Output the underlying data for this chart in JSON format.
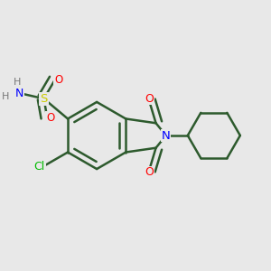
{
  "bg_color": "#e8e8e8",
  "bond_color": "#2d5a2d",
  "N_color": "#0000ff",
  "O_color": "#ff0000",
  "S_color": "#cccc00",
  "Cl_color": "#00bb00",
  "line_width": 1.8,
  "fig_size": [
    3.0,
    3.0
  ],
  "dpi": 100,
  "xlim": [
    -1.1,
    1.3
  ],
  "ylim": [
    -0.85,
    0.85
  ]
}
